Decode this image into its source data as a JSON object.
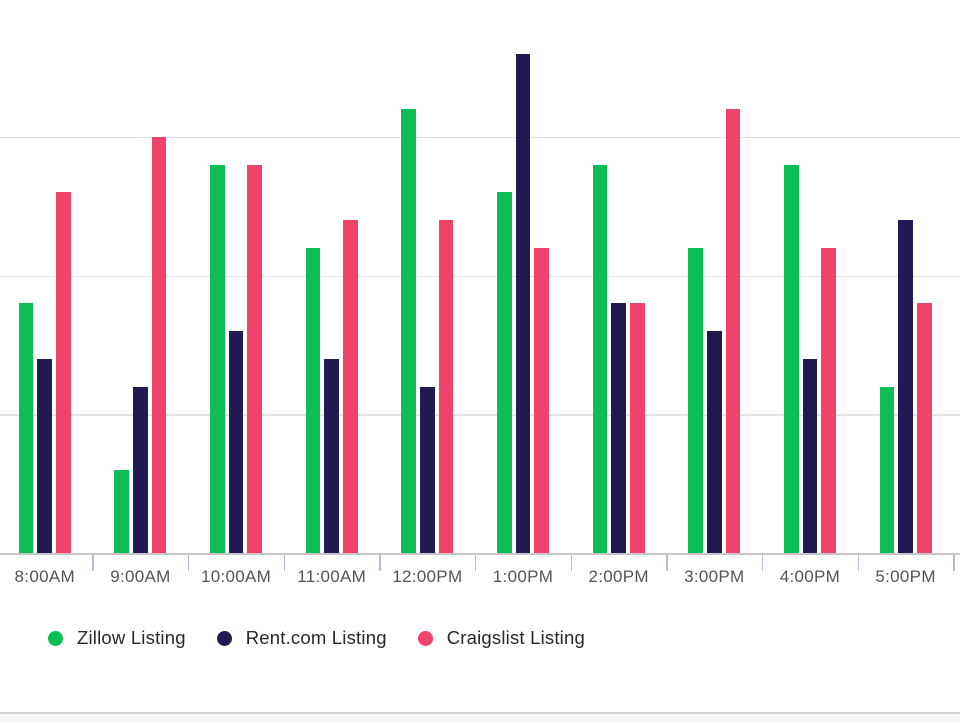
{
  "chart_data": {
    "type": "bar",
    "title": "",
    "xlabel": "",
    "ylabel": "",
    "categories": [
      "8:00AM",
      "9:00AM",
      "10:00AM",
      "11:00AM",
      "12:00PM",
      "1:00PM",
      "2:00PM",
      "3:00PM",
      "4:00PM",
      "5:00PM"
    ],
    "series": [
      {
        "name": "Zillow Listing",
        "color": "#0cbe53",
        "values": [
          9,
          3,
          14,
          11,
          16,
          13,
          14,
          11,
          14,
          6
        ]
      },
      {
        "name": "Rent.com Listing",
        "color": "#211a52",
        "values": [
          7,
          6,
          8,
          7,
          6,
          18,
          9,
          8,
          7,
          12
        ]
      },
      {
        "name": "Craigslist Listing",
        "color": "#f0436c",
        "values": [
          13,
          15,
          14,
          12,
          12,
          11,
          9,
          16,
          11,
          9
        ]
      }
    ],
    "ylim": [
      0,
      19.9
    ],
    "gridlines": [
      5,
      10,
      15
    ],
    "grid": "horizontal-only",
    "y_axis_labels_visible": false,
    "legend_position": "bottom-left"
  },
  "colors": {
    "background": "#ffffff",
    "gridline": "#e2e2e5",
    "axis_line": "#c6c6c9",
    "tick_mark": "#b2bedd",
    "x_label_text": "#53545b",
    "legend_text": "#28272d"
  }
}
